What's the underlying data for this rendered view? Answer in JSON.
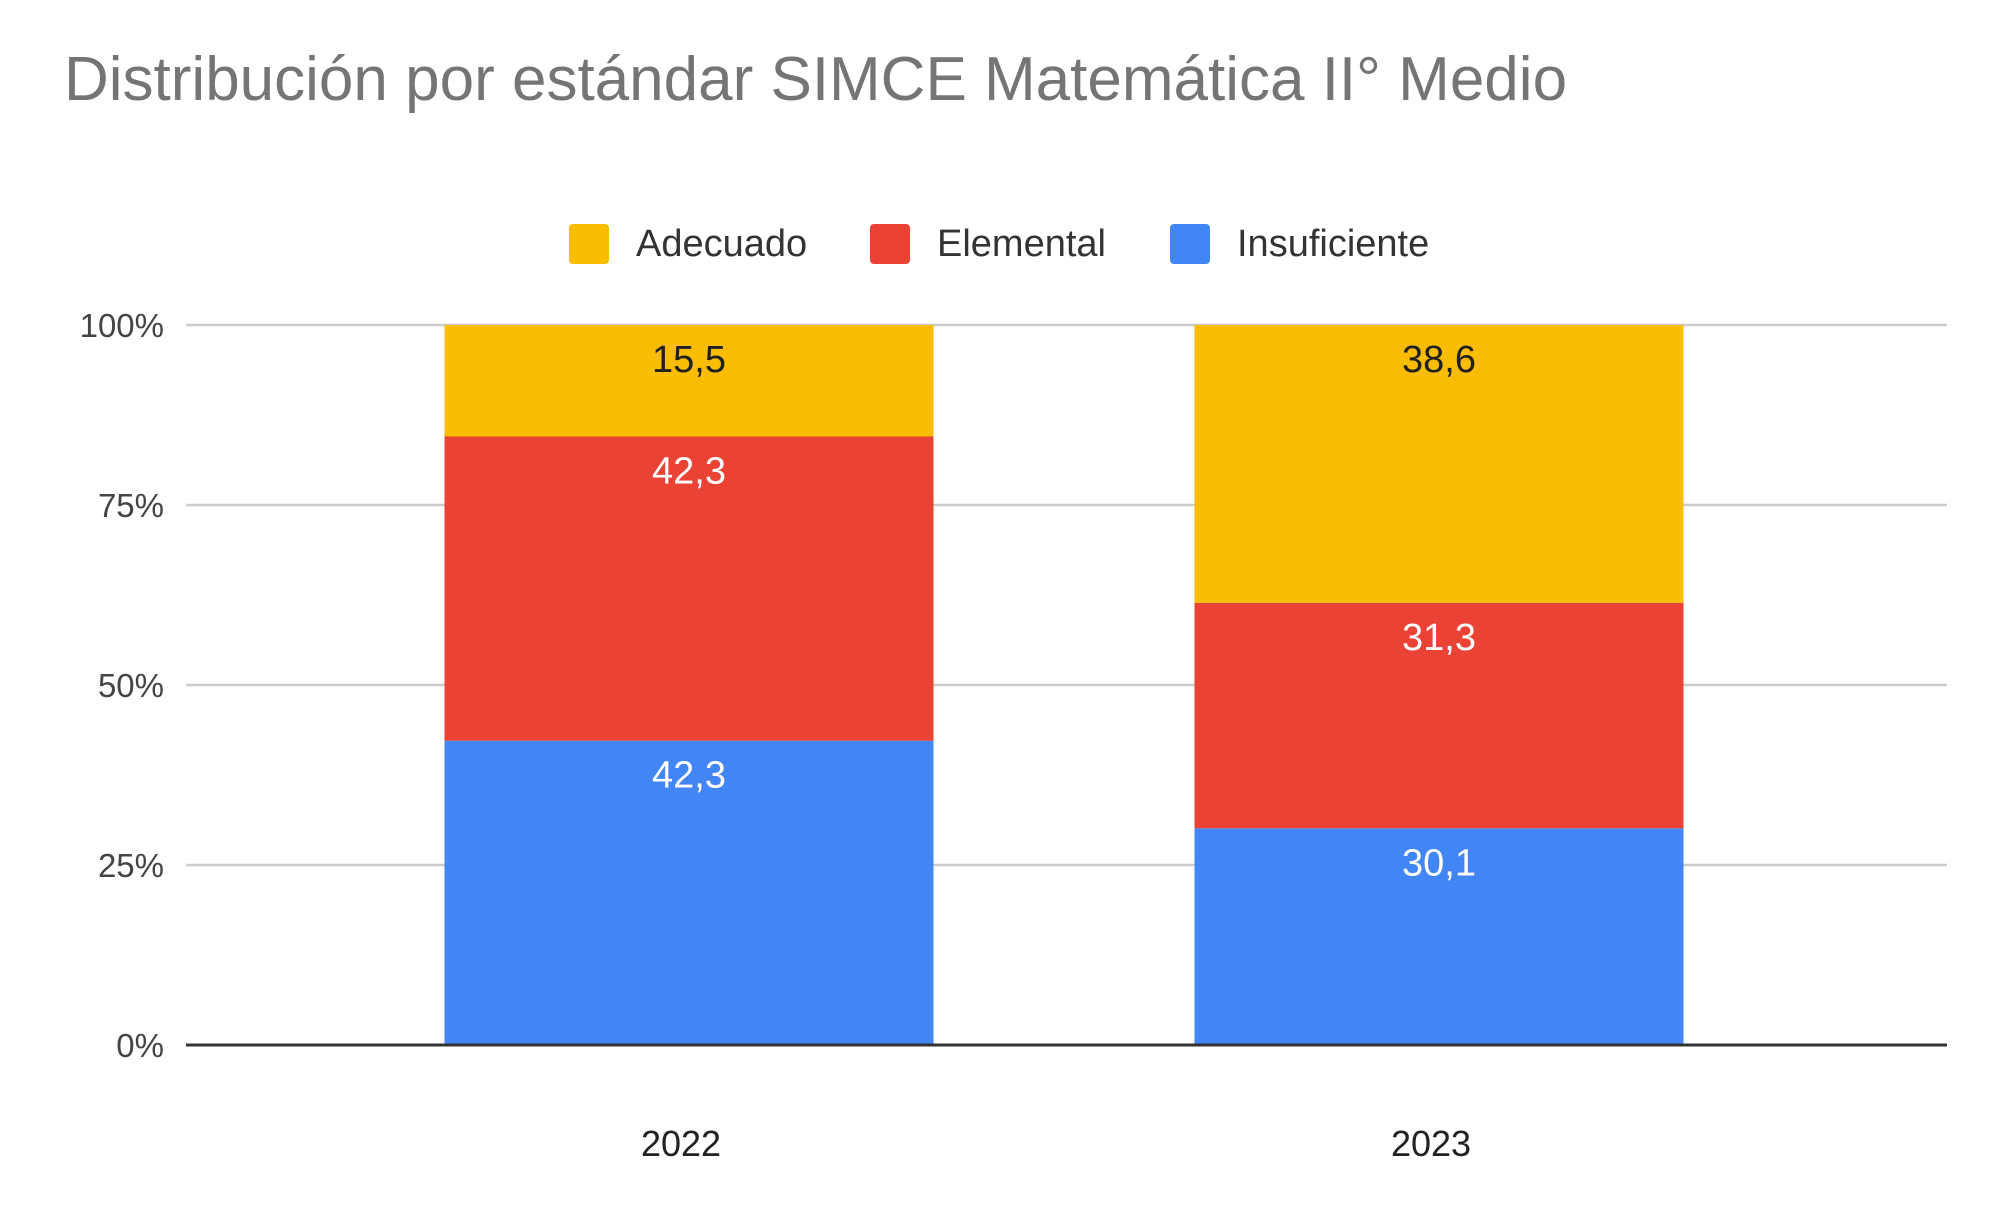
{
  "chart_data": {
    "type": "bar",
    "stacked": "percent",
    "title": "Distribución por estándar SIMCE Matemática II° Medio",
    "xlabel": "",
    "ylabel": "",
    "categories": [
      "2022",
      "2023"
    ],
    "series": [
      {
        "name": "Insuficiente",
        "values": [
          42.3,
          30.1
        ],
        "color": "#4285F4",
        "label_color": "#ffffff"
      },
      {
        "name": "Elemental",
        "values": [
          42.3,
          31.3
        ],
        "color": "#EA4335",
        "label_color": "#ffffff"
      },
      {
        "name": "Adecuado",
        "values": [
          15.5,
          38.6
        ],
        "color": "#FBBC04",
        "label_color": "#202124"
      }
    ],
    "legend_order": [
      "Adecuado",
      "Elemental",
      "Insuficiente"
    ],
    "legend_position": "top",
    "yticks": [
      "0%",
      "25%",
      "50%",
      "75%",
      "100%"
    ],
    "ylim": [
      0,
      100
    ],
    "grid": true
  }
}
